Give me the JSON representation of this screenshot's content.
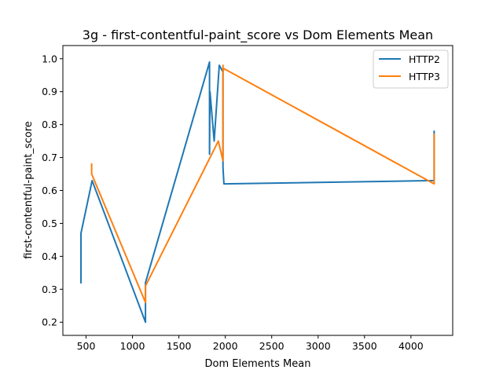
{
  "chart_data": {
    "type": "line",
    "title": "3g - first-contentful-paint_score vs Dom Elements Mean",
    "xlabel": "Dom Elements Mean",
    "ylabel": "first-contentful-paint_score",
    "xlim": [
      250,
      4450
    ],
    "ylim": [
      0.16,
      1.04
    ],
    "x_ticks": [
      500,
      1000,
      1500,
      2000,
      2500,
      3000,
      3500,
      4000
    ],
    "y_ticks": [
      0.2,
      0.3,
      0.4,
      0.5,
      0.6,
      0.7,
      0.8,
      0.9,
      1.0
    ],
    "x_tick_labels": [
      "500",
      "1000",
      "1500",
      "2000",
      "2500",
      "3000",
      "3500",
      "4000"
    ],
    "y_tick_labels": [
      "0.2",
      "0.3",
      "0.4",
      "0.5",
      "0.6",
      "0.7",
      "0.8",
      "0.9",
      "1.0"
    ],
    "grid": false,
    "legend_position": "top-right",
    "series": [
      {
        "name": "HTTP2",
        "color": "#1f77b4",
        "x": [
          445,
          445,
          565,
          1140,
          1140,
          1830,
          1830,
          1835,
          1880,
          1935,
          1975,
          1975,
          1985,
          4250,
          4250,
          4250
        ],
        "y": [
          0.32,
          0.47,
          0.63,
          0.2,
          0.32,
          0.99,
          0.71,
          0.9,
          0.75,
          0.98,
          0.96,
          0.67,
          0.62,
          0.63,
          0.78,
          0.68
        ]
      },
      {
        "name": "HTTP3",
        "color": "#ff7f0e",
        "x": [
          560,
          560,
          1140,
          1140,
          1925,
          1975,
          1975,
          1975,
          1985,
          4250,
          4250
        ],
        "y": [
          0.68,
          0.65,
          0.26,
          0.31,
          0.75,
          0.69,
          0.98,
          0.96,
          0.97,
          0.62,
          0.77
        ]
      }
    ]
  }
}
